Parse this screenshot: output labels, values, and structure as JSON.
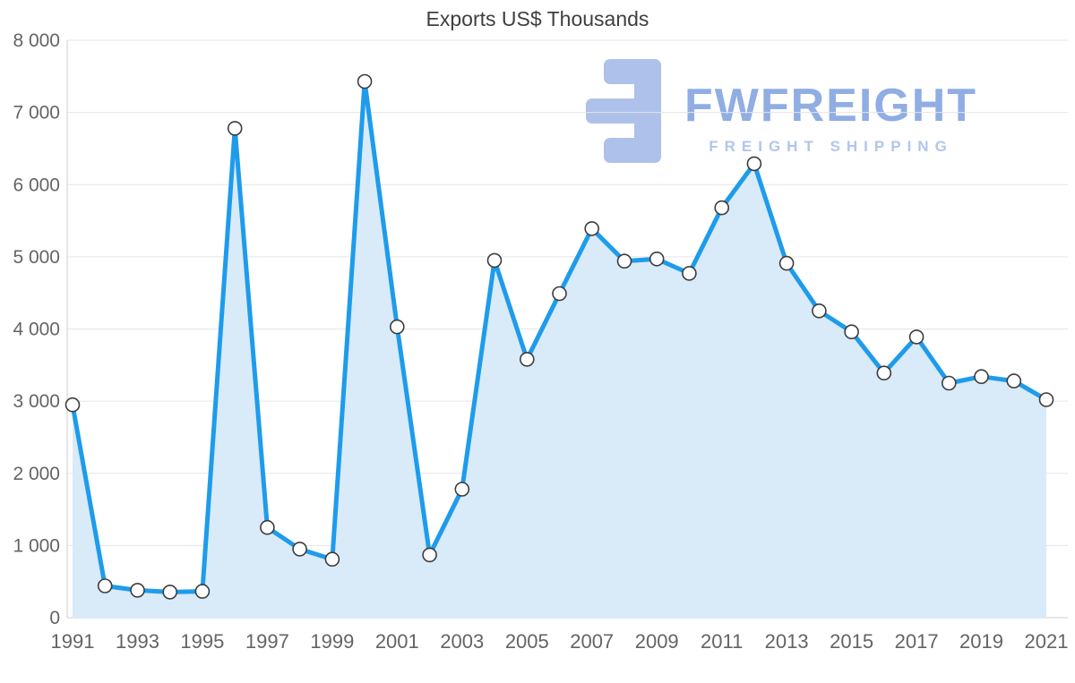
{
  "chart_data": {
    "type": "area",
    "title": "Exports US$ Thousands",
    "x": [
      1991,
      1992,
      1993,
      1994,
      1995,
      1996,
      1997,
      1998,
      1999,
      2000,
      2001,
      2002,
      2003,
      2004,
      2005,
      2006,
      2007,
      2008,
      2009,
      2010,
      2011,
      2012,
      2013,
      2014,
      2015,
      2016,
      2017,
      2018,
      2019,
      2020,
      2021
    ],
    "values": [
      2950,
      440,
      380,
      355,
      365,
      6780,
      1250,
      950,
      810,
      7430,
      4030,
      870,
      1780,
      4950,
      3580,
      4490,
      5390,
      4940,
      4970,
      4770,
      5680,
      6290,
      4910,
      4250,
      3960,
      3390,
      3890,
      3250,
      3340,
      3280,
      3020
    ],
    "ylim": [
      0,
      8000
    ],
    "y_tick_step": 1000,
    "y_tick_labels": [
      "0",
      "1 000",
      "2 000",
      "3 000",
      "4 000",
      "5 000",
      "6 000",
      "7 000",
      "8 000"
    ],
    "x_tick_labels": [
      "1991",
      "1993",
      "1995",
      "1997",
      "1999",
      "2001",
      "2003",
      "2005",
      "2007",
      "2009",
      "2011",
      "2013",
      "2015",
      "2017",
      "2019",
      "2021"
    ],
    "grid": "horizontal",
    "legend": "none",
    "line_color": "#1e9ceb",
    "fill_color": "#d9eaf8",
    "marker_fill": "#ffffff",
    "marker_stroke": "#3c3c3c",
    "axis_text_color": "#646464"
  },
  "watermark": {
    "brand": "FWFREIGHT",
    "tagline": "FREIGHT SHIPPING",
    "logo_color": "#9fb7e8"
  }
}
